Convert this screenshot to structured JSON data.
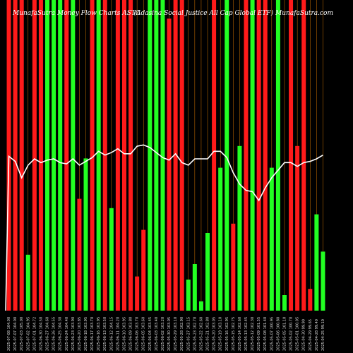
{
  "header": {
    "left": "MunafaSutra Money Flow Charts ASTC",
    "right": "(Adasina Social Justice All Cap Global ETF) MunafaSutra.com"
  },
  "colors": {
    "up": "#22ff22",
    "down": "#ff1a1a",
    "grid": "#ff8c00",
    "line": "#ffffff",
    "background": "#000000"
  },
  "chart_data": {
    "type": "bar",
    "title": "MunafaSutra Money Flow Charts ASTC",
    "subtitle": "(Adasina Social Justice All Cap Global ETF) MunafaSutra.com",
    "ylim": [
      0,
      100
    ],
    "categories": [
      "2025-07-08 104.00",
      "2025-07-07 104.00",
      "2025-07-03 105.00",
      "2025-07-02 104.95",
      "2025-07-01 104.72",
      "2025-06-30 104.50",
      "2025-06-27 104.60",
      "2025-06-26 104.55",
      "2025-06-25 104.30",
      "2025-06-24 104.40",
      "2025-06-23 103.90",
      "2025-06-20 103.85",
      "2025-06-18 103.95",
      "2025-06-17 103.70",
      "2025-06-16 103.95",
      "2025-06-13 103.50",
      "2025-06-12 104.15",
      "2025-06-11 104.20",
      "2025-06-10 103.95",
      "2025-06-09 103.80",
      "2025-06-06 103.70",
      "2025-06-05 103.60",
      "2025-06-04 103.45",
      "2025-06-03 103.40",
      "2025-06-02 103.20",
      "2025-05-30 103.05",
      "2025-05-29 103.10",
      "2025-05-28 102.90",
      "2025-05-27 103.15",
      "2025-05-23 102.70",
      "2025-05-22 102.60",
      "2025-05-21 102.80",
      "2025-05-20 103.05",
      "2025-05-19 103.10",
      "2025-05-16 102.95",
      "2025-05-15 102.75",
      "2025-05-14 102.60",
      "2025-05-13 102.45",
      "2025-05-12 102.30",
      "2025-05-09 101.55",
      "2025-05-08 101.40",
      "2025-05-07 100.95",
      "2025-05-06 100.80",
      "2025-05-05 101.10",
      "2025-05-02 100.70",
      "2025-05-01 100.05",
      "2025-04-30 99.90",
      "2025-04-29 99.65",
      "2025-04-28 99.40",
      "2025-04-25 99.10"
    ],
    "series": [
      {
        "flow": [
          100,
          100,
          100,
          18,
          100,
          100,
          100,
          100,
          100,
          100,
          100,
          36,
          49,
          100,
          100,
          100,
          33,
          100,
          100,
          100,
          11,
          26,
          100,
          100,
          100,
          94,
          100,
          100,
          10,
          15,
          3,
          25,
          100,
          46,
          100,
          28,
          53,
          100,
          100,
          100,
          100,
          46,
          100,
          5,
          100,
          53,
          100,
          7,
          31,
          19
        ],
        "direction": [
          "r",
          "r",
          "r",
          "g",
          "r",
          "r",
          "g",
          "g",
          "g",
          "r",
          "g",
          "r",
          "g",
          "r",
          "g",
          "r",
          "g",
          "r",
          "r",
          "r",
          "r",
          "r",
          "g",
          "g",
          "g",
          "r",
          "r",
          "r",
          "g",
          "g",
          "g",
          "g",
          "r",
          "g",
          "g",
          "r",
          "g",
          "r",
          "g",
          "r",
          "r",
          "g",
          "g",
          "g",
          "r",
          "r",
          "r",
          "r",
          "g",
          "g"
        ]
      },
      {
        "price": [
          100.0,
          99.6,
          98.3,
          99.3,
          99.8,
          99.5,
          99.7,
          99.8,
          99.5,
          99.4,
          99.8,
          99.3,
          99.6,
          99.9,
          100.4,
          100.1,
          100.3,
          100.6,
          100.2,
          100.2,
          100.8,
          100.9,
          100.7,
          100.3,
          99.9,
          99.7,
          100.2,
          99.5,
          99.3,
          99.8,
          99.8,
          99.8,
          100.4,
          100.4,
          99.9,
          98.7,
          97.8,
          97.3,
          97.2,
          96.5,
          97.5,
          98.3,
          98.9,
          99.5,
          99.5,
          99.2,
          99.5,
          99.6,
          99.8,
          100.1
        ]
      }
    ]
  }
}
